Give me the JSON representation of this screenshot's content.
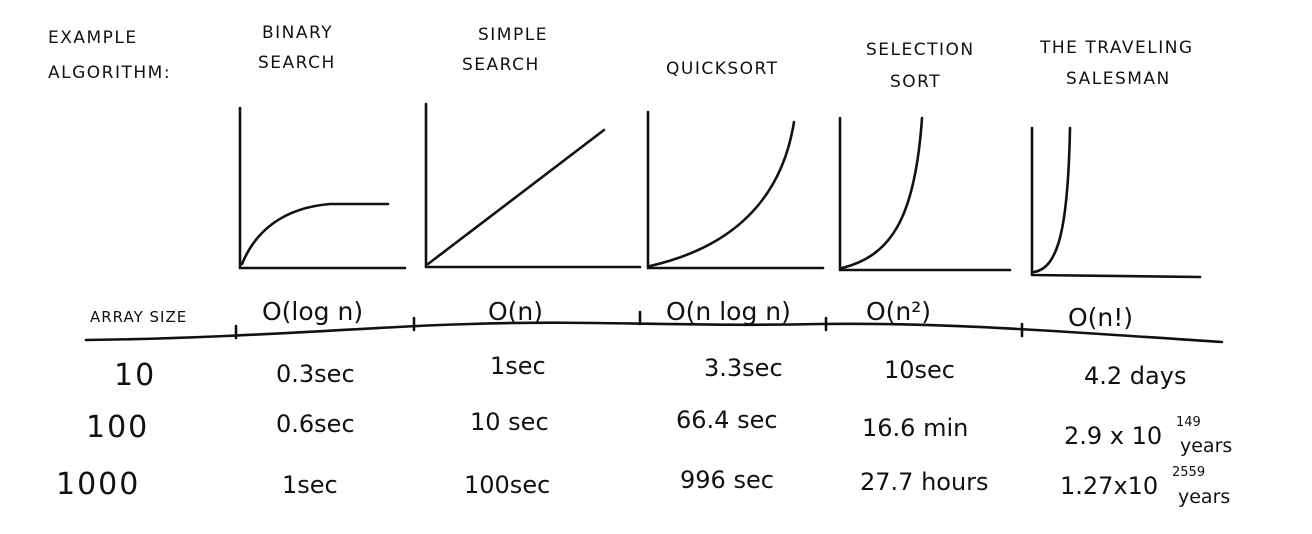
{
  "header": {
    "label_lines": [
      "EXAMPLE",
      "ALGORITHM:"
    ],
    "row_label": "ARRAY SIZE"
  },
  "algorithms": [
    {
      "name_lines": [
        "BINARY",
        "SEARCH"
      ],
      "complexity": "O(log n)",
      "curve": "log",
      "times": [
        {
          "t": "0.3sec"
        },
        {
          "t": "0.6sec"
        },
        {
          "t": "1sec"
        }
      ]
    },
    {
      "name_lines": [
        "SIMPLE",
        "SEARCH"
      ],
      "complexity": "O(n)",
      "curve": "linear",
      "times": [
        {
          "t": "1sec"
        },
        {
          "t": "10 sec"
        },
        {
          "t": "100sec"
        }
      ]
    },
    {
      "name_lines": [
        "QUICKSORT"
      ],
      "complexity": "O(n log n)",
      "curve": "nlogn",
      "times": [
        {
          "t": "3.3sec"
        },
        {
          "t": "66.4 sec"
        },
        {
          "t": "996 sec"
        }
      ]
    },
    {
      "name_lines": [
        "SELECTION",
        "SORT"
      ],
      "complexity": "O(n²)",
      "curve": "quadratic",
      "times": [
        {
          "t": "10sec"
        },
        {
          "t": "16.6 min"
        },
        {
          "t": "27.7 hours"
        }
      ]
    },
    {
      "name_lines": [
        "THE TRAVELING",
        "SALESMAN"
      ],
      "complexity": "O(n!)",
      "curve": "factorial",
      "times": [
        {
          "t": "4.2 days"
        },
        {
          "t": "2.9 x 10",
          "exp": "149",
          "unit": "years"
        },
        {
          "t": "1.27x10",
          "exp": "2559",
          "unit": "years"
        }
      ]
    }
  ],
  "array_sizes": [
    "10",
    "100",
    "1000"
  ]
}
